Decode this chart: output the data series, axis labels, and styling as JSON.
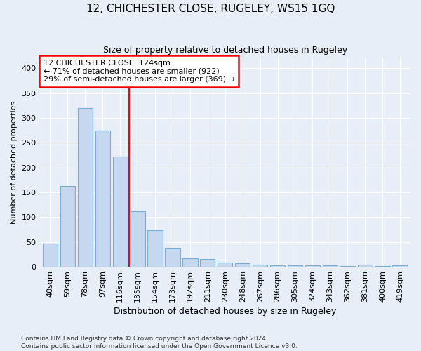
{
  "title": "12, CHICHESTER CLOSE, RUGELEY, WS15 1GQ",
  "subtitle": "Size of property relative to detached houses in Rugeley",
  "xlabel": "Distribution of detached houses by size in Rugeley",
  "ylabel": "Number of detached properties",
  "footnote1": "Contains HM Land Registry data © Crown copyright and database right 2024.",
  "footnote2": "Contains public sector information licensed under the Open Government Licence v3.0.",
  "bar_labels": [
    "40sqm",
    "59sqm",
    "78sqm",
    "97sqm",
    "116sqm",
    "135sqm",
    "154sqm",
    "173sqm",
    "192sqm",
    "211sqm",
    "230sqm",
    "248sqm",
    "267sqm",
    "286sqm",
    "305sqm",
    "324sqm",
    "343sqm",
    "362sqm",
    "381sqm",
    "400sqm",
    "419sqm"
  ],
  "bar_values": [
    47,
    163,
    320,
    275,
    222,
    112,
    73,
    38,
    17,
    16,
    9,
    7,
    5,
    3,
    3,
    3,
    3,
    2,
    5,
    2,
    3
  ],
  "bar_color": "#c5d8f0",
  "bar_edge_color": "#7aadd4",
  "vline_x": 4.5,
  "vline_color": "red",
  "annotation_line1": "12 CHICHESTER CLOSE: 124sqm",
  "annotation_line2": "← 71% of detached houses are smaller (922)",
  "annotation_line3": "29% of semi-detached houses are larger (369) →",
  "annotation_box_edgecolor": "red",
  "annotation_text_color": "black",
  "annotation_box_facecolor": "white",
  "ylim": [
    0,
    420
  ],
  "yticks": [
    0,
    50,
    100,
    150,
    200,
    250,
    300,
    350,
    400
  ],
  "background_color": "#e8eef8",
  "grid_color": "white",
  "title_fontsize": 11,
  "subtitle_fontsize": 9,
  "xlabel_fontsize": 9,
  "ylabel_fontsize": 8,
  "tick_fontsize": 8,
  "annotation_fontsize": 8,
  "footnote_fontsize": 6.5
}
